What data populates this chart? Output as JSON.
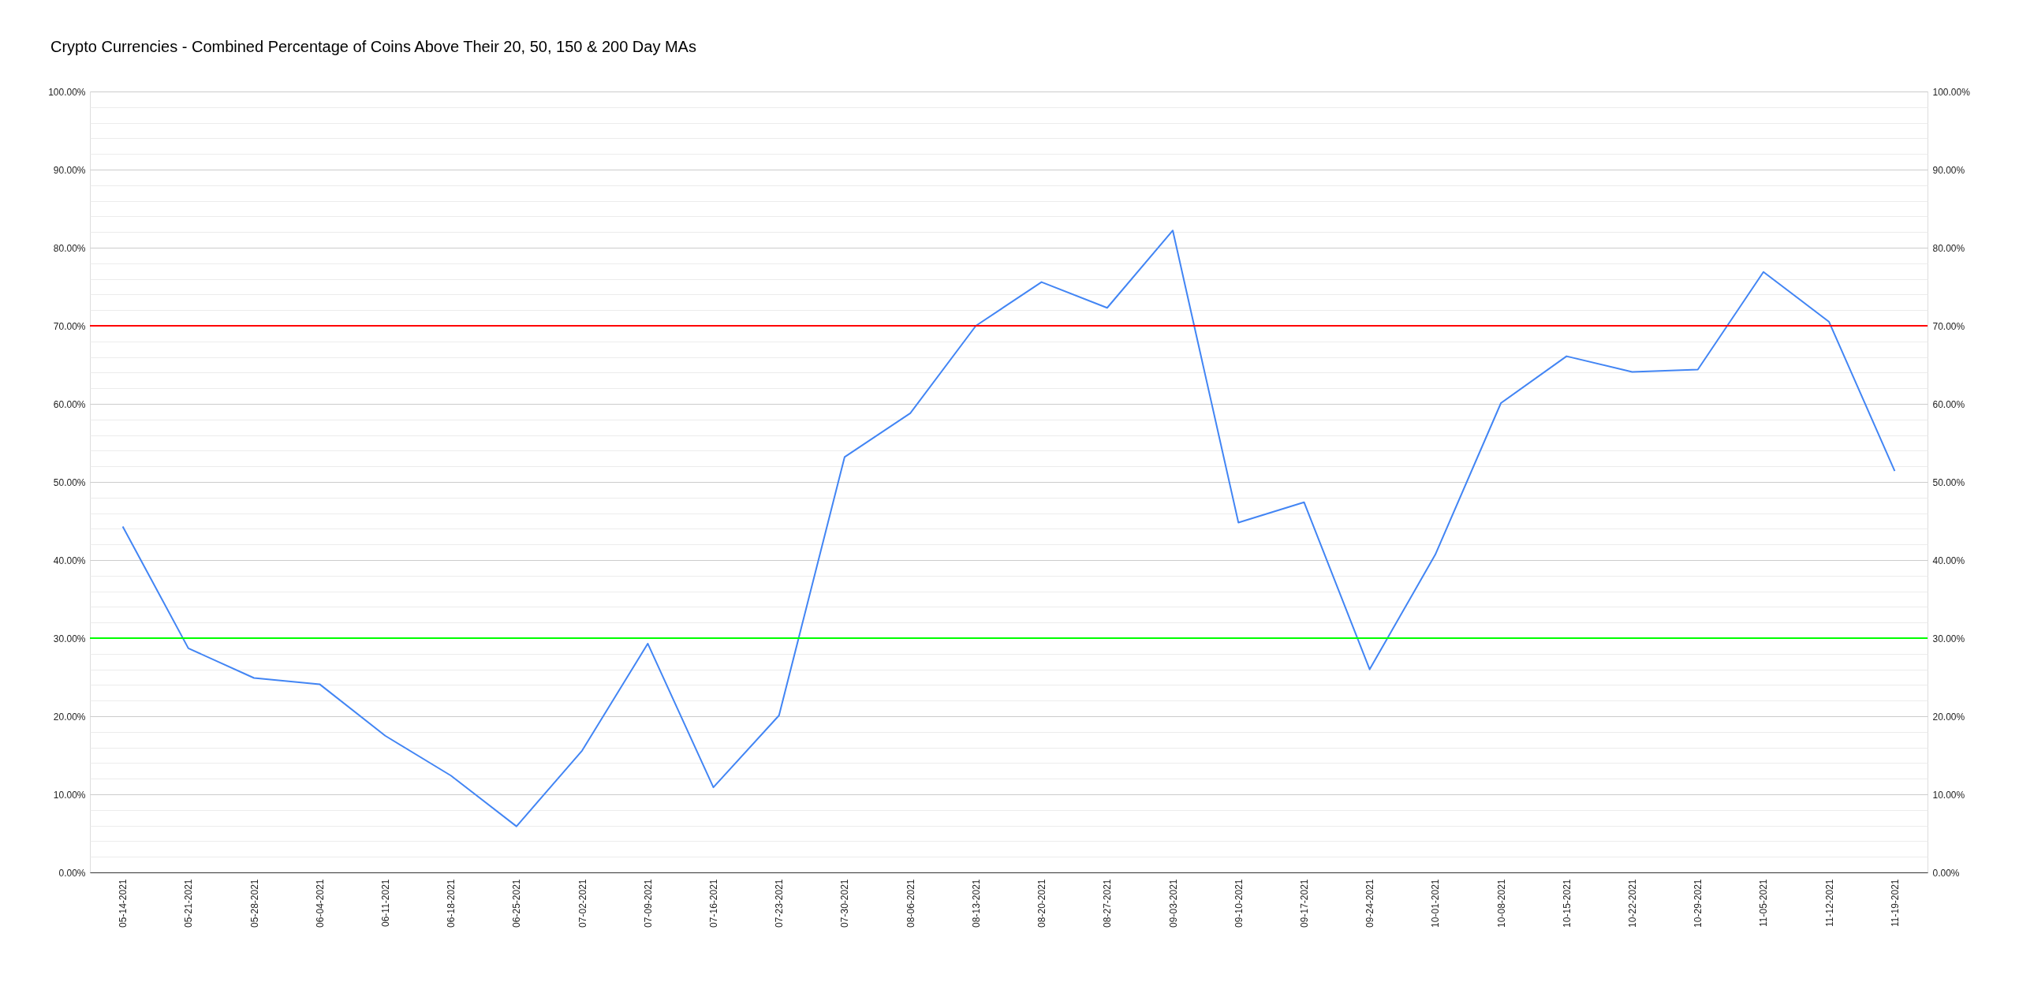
{
  "chart_data": {
    "type": "line",
    "title": "Crypto Currencies - Combined Percentage of Coins Above Their 20, 50, 150 & 200 Day MAs",
    "categories": [
      "05-14-2021",
      "05-21-2021",
      "05-28-2021",
      "06-04-2021",
      "06-11-2021",
      "06-18-2021",
      "06-25-2021",
      "07-02-2021",
      "07-09-2021",
      "07-16-2021",
      "07-23-2021",
      "07-30-2021",
      "08-06-2021",
      "08-13-2021",
      "08-20-2021",
      "08-27-2021",
      "09-03-2021",
      "09-10-2021",
      "09-17-2021",
      "09-24-2021",
      "10-01-2021",
      "10-08-2021",
      "10-15-2021",
      "10-22-2021",
      "10-29-2021",
      "11-05-2021",
      "11-12-2021",
      "11-19-2021"
    ],
    "series": [
      {
        "color": "#4285f4",
        "values": [
          44.3,
          28.7,
          24.9,
          24.1,
          17.5,
          12.4,
          5.9,
          15.6,
          29.3,
          10.9,
          20.1,
          53.2,
          58.8,
          70.0,
          75.6,
          72.3,
          82.2,
          44.8,
          47.4,
          26.0,
          40.7,
          60.1,
          66.1,
          64.1,
          64.4,
          76.9,
          70.5,
          51.4
        ]
      }
    ],
    "ylim": [
      0,
      100
    ],
    "yticks": [
      {
        "value": 0,
        "label": "0.00%"
      },
      {
        "value": 2,
        "label": null
      },
      {
        "value": 4,
        "label": null
      },
      {
        "value": 6,
        "label": null
      },
      {
        "value": 8,
        "label": null
      },
      {
        "value": 10,
        "label": "10.00%"
      },
      {
        "value": 12,
        "label": null
      },
      {
        "value": 14,
        "label": null
      },
      {
        "value": 16,
        "label": null
      },
      {
        "value": 18,
        "label": null
      },
      {
        "value": 20,
        "label": "20.00%"
      },
      {
        "value": 22,
        "label": null
      },
      {
        "value": 24,
        "label": null
      },
      {
        "value": 26,
        "label": null
      },
      {
        "value": 28,
        "label": null
      },
      {
        "value": 30,
        "label": "30.00%"
      },
      {
        "value": 32,
        "label": null
      },
      {
        "value": 34,
        "label": null
      },
      {
        "value": 36,
        "label": null
      },
      {
        "value": 38,
        "label": null
      },
      {
        "value": 40,
        "label": "40.00%"
      },
      {
        "value": 42,
        "label": null
      },
      {
        "value": 44,
        "label": null
      },
      {
        "value": 46,
        "label": null
      },
      {
        "value": 48,
        "label": null
      },
      {
        "value": 50,
        "label": "50.00%"
      },
      {
        "value": 52,
        "label": null
      },
      {
        "value": 54,
        "label": null
      },
      {
        "value": 56,
        "label": null
      },
      {
        "value": 58,
        "label": null
      },
      {
        "value": 60,
        "label": "60.00%"
      },
      {
        "value": 62,
        "label": null
      },
      {
        "value": 64,
        "label": null
      },
      {
        "value": 66,
        "label": null
      },
      {
        "value": 68,
        "label": null
      },
      {
        "value": 70,
        "label": "70.00%"
      },
      {
        "value": 72,
        "label": null
      },
      {
        "value": 74,
        "label": null
      },
      {
        "value": 76,
        "label": null
      },
      {
        "value": 78,
        "label": null
      },
      {
        "value": 80,
        "label": "80.00%"
      },
      {
        "value": 82,
        "label": null
      },
      {
        "value": 84,
        "label": null
      },
      {
        "value": 86,
        "label": null
      },
      {
        "value": 88,
        "label": null
      },
      {
        "value": 90,
        "label": "90.00%"
      },
      {
        "value": 92,
        "label": null
      },
      {
        "value": 94,
        "label": null
      },
      {
        "value": 96,
        "label": null
      },
      {
        "value": 98,
        "label": null
      },
      {
        "value": 100,
        "label": "100.00%"
      }
    ],
    "y2lim": [
      0,
      100
    ],
    "y2ticks": [
      {
        "value": 0,
        "label": "0.00%"
      },
      {
        "value": 10,
        "label": "10.00%"
      },
      {
        "value": 20,
        "label": "20.00%"
      },
      {
        "value": 30,
        "label": "30.00%"
      },
      {
        "value": 40,
        "label": "40.00%"
      },
      {
        "value": 50,
        "label": "50.00%"
      },
      {
        "value": 60,
        "label": "60.00%"
      },
      {
        "value": 70,
        "label": "70.00%"
      },
      {
        "value": 80,
        "label": "80.00%"
      },
      {
        "value": 90,
        "label": "90.00%"
      },
      {
        "value": 100,
        "label": "100.00%"
      }
    ],
    "ref_lines": [
      {
        "axis": "y",
        "value": 70,
        "color": "#ff0000"
      },
      {
        "axis": "y",
        "value": 30,
        "color": "#00ff00"
      }
    ],
    "grid": "y"
  }
}
